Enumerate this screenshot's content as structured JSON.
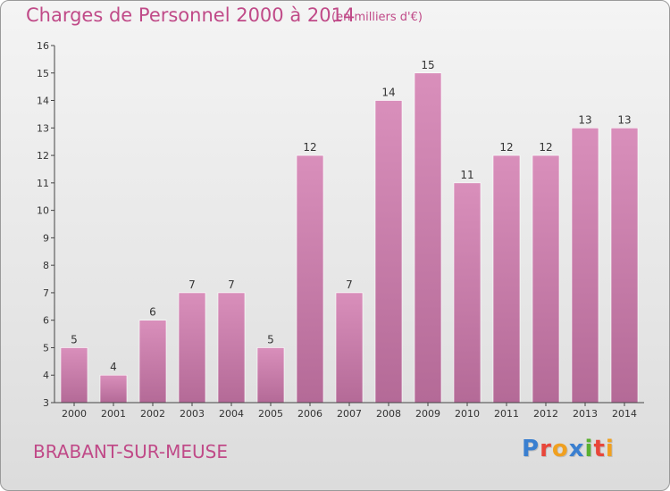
{
  "header": {
    "title": "Charges de Personnel 2000 à 2014",
    "subtitle": "(en milliers d'€)"
  },
  "footer": {
    "commune": "BRABANT-SUR-MEUSE",
    "logo": "Proxiti",
    "logo_colors": [
      "#3a7fd0",
      "#e8463a",
      "#f0a020",
      "#3a7fd0",
      "#5ab030",
      "#e8463a",
      "#f0a020"
    ]
  },
  "chart_data": {
    "type": "bar",
    "title": "Charges de Personnel 2000 à 2014",
    "subtitle": "(en milliers d'€)",
    "categories": [
      "2000",
      "2001",
      "2002",
      "2003",
      "2004",
      "2005",
      "2006",
      "2007",
      "2008",
      "2009",
      "2010",
      "2011",
      "2012",
      "2013",
      "2014"
    ],
    "values": [
      5,
      4,
      6,
      7,
      7,
      5,
      12,
      7,
      14,
      15,
      11,
      12,
      12,
      13,
      13
    ],
    "ylim": [
      3,
      16
    ],
    "yticks": [
      3,
      4,
      5,
      6,
      7,
      8,
      9,
      10,
      11,
      12,
      13,
      14,
      15,
      16
    ],
    "grid": false,
    "bar_color": "#d98fbb",
    "bar_color_dark": "#b46a97",
    "xlabel": "",
    "ylabel": ""
  }
}
